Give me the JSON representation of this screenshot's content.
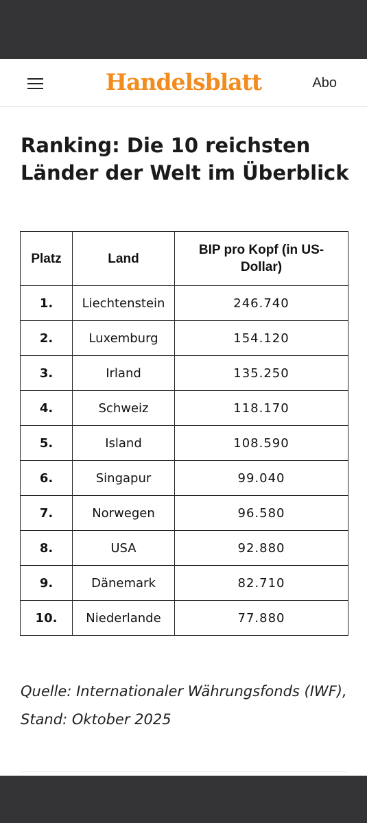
{
  "header": {
    "logo_text": "Handelsblatt",
    "abo_label": "Abo",
    "menu_icon": "hamburger-menu-icon"
  },
  "article": {
    "title": "Ranking: Die 10 reichsten Länder der Welt im Überblick",
    "table": {
      "headers": [
        "Platz",
        "Land",
        "BIP pro Kopf (in US-Dollar)"
      ],
      "rows": [
        {
          "platz": "1.",
          "land": "Liechtenstein",
          "bip": "246.740"
        },
        {
          "platz": "2.",
          "land": "Luxemburg",
          "bip": "154.120"
        },
        {
          "platz": "3.",
          "land": "Irland",
          "bip": "135.250"
        },
        {
          "platz": "4.",
          "land": "Schweiz",
          "bip": "118.170"
        },
        {
          "platz": "5.",
          "land": "Island",
          "bip": "108.590"
        },
        {
          "platz": "6.",
          "land": "Singapur",
          "bip": "99.040"
        },
        {
          "platz": "7.",
          "land": "Norwegen",
          "bip": "96.580"
        },
        {
          "platz": "8.",
          "land": "USA",
          "bip": "92.880"
        },
        {
          "platz": "9.",
          "land": "Dänemark",
          "bip": "82.710"
        },
        {
          "platz": "10.",
          "land": "Niederlande",
          "bip": "77.880"
        }
      ]
    },
    "source": "Quelle: Internationaler Währungsfonds (IWF), Stand: Oktober 2025"
  },
  "colors": {
    "brand": "#f28c1e",
    "system_bar": "#333335"
  }
}
